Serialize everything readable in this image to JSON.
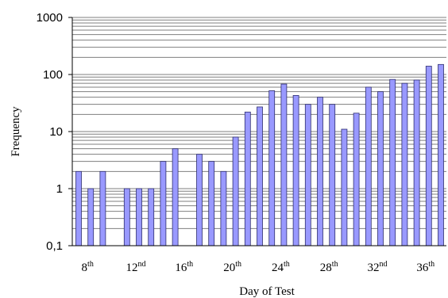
{
  "chart_data": {
    "type": "bar",
    "scale": "log",
    "xlabel": "Day of Test",
    "ylabel": "Frequency",
    "ylim": [
      0.1,
      1000
    ],
    "y_ticks": [
      "1000",
      "100",
      "10",
      "1",
      "0,1"
    ],
    "grid": "horizontal minor and major gridlines",
    "days": [
      7,
      8,
      9,
      10,
      11,
      12,
      13,
      14,
      15,
      16,
      17,
      18,
      19,
      20,
      21,
      22,
      23,
      24,
      25,
      26,
      27,
      28,
      29,
      30,
      31,
      32,
      33,
      34,
      35,
      36,
      37
    ],
    "values": [
      2,
      1,
      2,
      null,
      1,
      1,
      1,
      3,
      5,
      null,
      4,
      3,
      2,
      8,
      22,
      27,
      52,
      68,
      43,
      30,
      40,
      30,
      11,
      21,
      60,
      50,
      82,
      70,
      80,
      140,
      150
    ],
    "x_tick_labels": [
      {
        "day": 8,
        "num": "8",
        "sup": "th"
      },
      {
        "day": 12,
        "num": "12",
        "sup": "nd"
      },
      {
        "day": 16,
        "num": "16",
        "sup": "th"
      },
      {
        "day": 20,
        "num": "20",
        "sup": "th"
      },
      {
        "day": 24,
        "num": "24",
        "sup": "th"
      },
      {
        "day": 28,
        "num": "28",
        "sup": "th"
      },
      {
        "day": 32,
        "num": "32",
        "sup": "nd"
      },
      {
        "day": 36,
        "num": "36",
        "sup": "th"
      }
    ],
    "bar_color": "#9999ff"
  }
}
